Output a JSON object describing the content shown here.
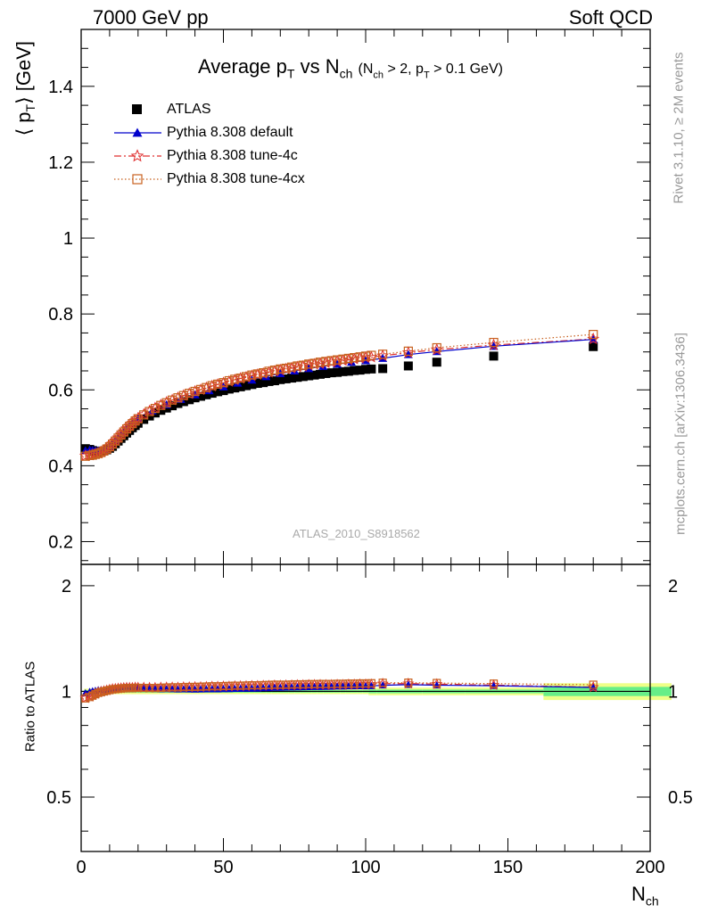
{
  "header": {
    "left": "7000 GeV pp",
    "right": "Soft QCD"
  },
  "side": {
    "version": "Rivet 3.1.10, ≥ 2M events",
    "source": "mcplots.cern.ch [arXiv:1306.3436]"
  },
  "chart_data": {
    "type": "scatter",
    "title": "Average p_T vs N_ch (N_ch > 2, p_T > 0.1 GeV)",
    "title_main": "Average p",
    "title_vs": " vs N",
    "title_cut": "(N",
    "title_cut2": " > 2, p",
    "title_cut3": " > 0.1 GeV)",
    "sub_T": "T",
    "sub_ch": "ch",
    "watermark": "ATLAS_2010_S8918562",
    "ylabel_main": "⟨ p",
    "ylabel_unit": "⟩ [GeV]",
    "ylabel_ratio": "Ratio to ATLAS",
    "xlabel": "N",
    "xlim": [
      0,
      200
    ],
    "ylim": [
      0.14,
      1.55
    ],
    "ratio_ylim": [
      0.35,
      2.3
    ],
    "ratio_log": true,
    "x_ticks": [
      "0",
      "50",
      "100",
      "150",
      "200"
    ],
    "y_ticks": [
      "0.2",
      "0.4",
      "0.6",
      "0.8",
      "1",
      "1.2",
      "1.4"
    ],
    "ratio_ticks": [
      "0.5",
      "1",
      "2"
    ],
    "ratio_ticks_right": [
      "0.5",
      "1",
      "2"
    ],
    "legend": [
      "ATLAS",
      "Pythia 8.308 default",
      "Pythia 8.308 tune-4c",
      "Pythia 8.308 tune-4cx"
    ],
    "colors": {
      "data": "#000000",
      "default": "#0000cc",
      "tune4c": "#e03030",
      "tune4cx": "#c8601e",
      "band_inner": "#66ee88",
      "band_outer": "#eeff88"
    },
    "atlas": {
      "x": [
        1.5,
        3,
        4,
        5,
        6,
        7,
        8,
        9,
        10,
        11,
        12,
        13,
        14,
        15,
        16,
        17,
        18,
        19,
        20,
        22,
        24,
        26,
        28,
        30,
        32,
        34,
        36,
        38,
        40,
        42,
        44,
        46,
        48,
        50,
        52,
        54,
        56,
        58,
        60,
        62,
        64,
        66,
        68,
        70,
        72,
        74,
        76,
        78,
        80,
        82,
        84,
        86,
        88,
        90,
        92,
        94,
        96,
        98,
        100,
        102,
        106,
        115,
        125,
        145,
        180
      ],
      "y": [
        0.445,
        0.443,
        0.44,
        0.438,
        0.436,
        0.437,
        0.439,
        0.442,
        0.446,
        0.451,
        0.458,
        0.465,
        0.472,
        0.479,
        0.486,
        0.493,
        0.5,
        0.506,
        0.512,
        0.522,
        0.531,
        0.539,
        0.546,
        0.552,
        0.558,
        0.564,
        0.569,
        0.574,
        0.579,
        0.583,
        0.587,
        0.591,
        0.595,
        0.598,
        0.602,
        0.605,
        0.608,
        0.611,
        0.614,
        0.617,
        0.619,
        0.622,
        0.624,
        0.627,
        0.629,
        0.631,
        0.633,
        0.635,
        0.637,
        0.639,
        0.641,
        0.643,
        0.645,
        0.646,
        0.648,
        0.649,
        0.651,
        0.652,
        0.654,
        0.655,
        0.656,
        0.663,
        0.673,
        0.689,
        0.714
      ]
    },
    "series": [
      {
        "name": "Pythia 8.308 default",
        "x": [
          1.5,
          3,
          4,
          5,
          6,
          8,
          10,
          12,
          14,
          16,
          18,
          20,
          25,
          30,
          35,
          40,
          45,
          50,
          55,
          60,
          65,
          70,
          75,
          80,
          85,
          90,
          95,
          100,
          106,
          115,
          125,
          145,
          180
        ],
        "y": [
          0.44,
          0.442,
          0.441,
          0.44,
          0.44,
          0.443,
          0.452,
          0.468,
          0.486,
          0.502,
          0.515,
          0.525,
          0.545,
          0.561,
          0.575,
          0.587,
          0.598,
          0.608,
          0.618,
          0.626,
          0.635,
          0.643,
          0.65,
          0.656,
          0.662,
          0.668,
          0.673,
          0.677,
          0.683,
          0.693,
          0.701,
          0.715,
          0.733
        ]
      },
      {
        "name": "Pythia 8.308 tune-4c",
        "x": [
          1.5,
          3,
          4,
          5,
          6,
          7,
          8,
          9,
          10,
          11,
          12,
          13,
          14,
          15,
          16,
          17,
          18,
          19,
          20,
          22,
          24,
          26,
          28,
          30,
          32,
          34,
          36,
          38,
          40,
          42,
          44,
          46,
          48,
          50,
          52,
          54,
          56,
          58,
          60,
          62,
          64,
          66,
          68,
          70,
          72,
          74,
          76,
          78,
          80,
          82,
          84,
          86,
          88,
          90,
          92,
          94,
          96,
          98,
          100,
          102,
          106,
          115,
          125,
          145,
          180
        ],
        "y": [
          0.426,
          0.428,
          0.429,
          0.431,
          0.433,
          0.436,
          0.44,
          0.445,
          0.451,
          0.458,
          0.466,
          0.474,
          0.482,
          0.49,
          0.498,
          0.505,
          0.512,
          0.519,
          0.525,
          0.535,
          0.544,
          0.552,
          0.56,
          0.567,
          0.573,
          0.579,
          0.585,
          0.59,
          0.596,
          0.6,
          0.605,
          0.61,
          0.614,
          0.618,
          0.622,
          0.626,
          0.63,
          0.633,
          0.637,
          0.64,
          0.643,
          0.646,
          0.649,
          0.652,
          0.655,
          0.657,
          0.66,
          0.662,
          0.665,
          0.667,
          0.669,
          0.671,
          0.673,
          0.675,
          0.677,
          0.679,
          0.681,
          0.683,
          0.685,
          0.686,
          0.69,
          0.698,
          0.706,
          0.718,
          0.734
        ]
      },
      {
        "name": "Pythia 8.308 tune-4cx",
        "x": [
          1.5,
          3,
          4,
          5,
          6,
          7,
          8,
          9,
          10,
          11,
          12,
          13,
          14,
          15,
          16,
          17,
          18,
          19,
          20,
          22,
          24,
          26,
          28,
          30,
          32,
          34,
          36,
          38,
          40,
          42,
          44,
          46,
          48,
          50,
          52,
          54,
          56,
          58,
          60,
          62,
          64,
          66,
          68,
          70,
          72,
          74,
          76,
          78,
          80,
          82,
          84,
          86,
          88,
          90,
          92,
          94,
          96,
          98,
          100,
          102,
          106,
          115,
          125,
          145,
          180
        ],
        "y": [
          0.425,
          0.427,
          0.428,
          0.43,
          0.432,
          0.435,
          0.439,
          0.444,
          0.45,
          0.457,
          0.465,
          0.473,
          0.481,
          0.489,
          0.497,
          0.504,
          0.511,
          0.518,
          0.524,
          0.534,
          0.543,
          0.551,
          0.559,
          0.566,
          0.573,
          0.579,
          0.585,
          0.591,
          0.596,
          0.601,
          0.606,
          0.611,
          0.615,
          0.619,
          0.624,
          0.628,
          0.631,
          0.635,
          0.639,
          0.642,
          0.645,
          0.649,
          0.652,
          0.655,
          0.657,
          0.66,
          0.663,
          0.665,
          0.668,
          0.67,
          0.673,
          0.675,
          0.677,
          0.679,
          0.681,
          0.683,
          0.685,
          0.687,
          0.689,
          0.691,
          0.694,
          0.702,
          0.711,
          0.725,
          0.746
        ]
      }
    ]
  }
}
